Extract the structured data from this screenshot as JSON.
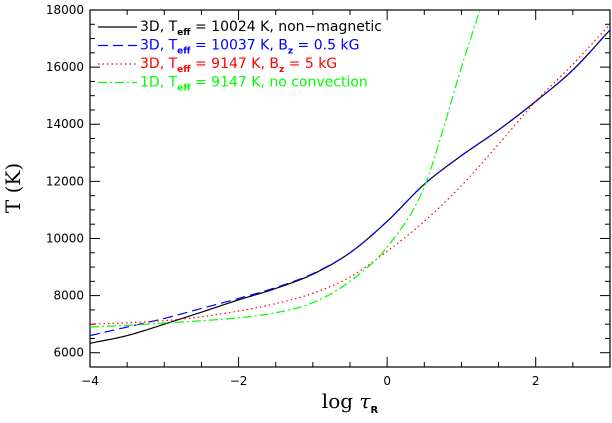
{
  "chart_data": {
    "type": "line",
    "xlabel_main": "log",
    "xlabel_greek": "τ",
    "xlabel_sub": "R",
    "ylabel_main": "T",
    "ylabel_unit": "(K)",
    "xlim": [
      -4,
      3
    ],
    "ylim": [
      5500,
      18000
    ],
    "xticks": [
      -4,
      -2,
      0,
      2
    ],
    "yticks": [
      6000,
      8000,
      10000,
      12000,
      14000,
      16000,
      18000
    ],
    "xtick_labels": [
      "−4",
      "−2",
      "0",
      "2"
    ],
    "ytick_labels": [
      "6000",
      "8000",
      "10000",
      "12000",
      "14000",
      "16000",
      "18000"
    ],
    "grid": false,
    "legend_position": "top-left",
    "series": [
      {
        "legend_pre": "3D, T",
        "legend_sub": "eff",
        "legend_post": " = 10024 K, non−magnetic",
        "color": "#000000",
        "dash": "",
        "x": [
          -4,
          -3.5,
          -3,
          -2.5,
          -2,
          -1.5,
          -1,
          -0.5,
          0,
          0.5,
          1,
          1.5,
          2,
          2.5,
          3
        ],
        "y": [
          6330,
          6600,
          7000,
          7420,
          7850,
          8250,
          8750,
          9500,
          10600,
          11900,
          12900,
          13800,
          14800,
          15900,
          17300
        ]
      },
      {
        "legend_pre": "3D, T",
        "legend_sub": "eff",
        "legend_post": " = 10037 K, B",
        "legend_sub2": "z",
        "legend_post2": " = 0.5 kG",
        "color": "#0000ff",
        "dash": "10,5",
        "x": [
          -4,
          -3.5,
          -3,
          -2.5,
          -2,
          -1.5,
          -1,
          -0.5,
          0,
          0.5,
          1,
          1.5,
          2,
          2.5,
          3
        ],
        "y": [
          6600,
          6900,
          7200,
          7550,
          7900,
          8280,
          8770,
          9500,
          10600,
          11900,
          12900,
          13800,
          14800,
          15900,
          17300
        ]
      },
      {
        "legend_pre": "3D, T",
        "legend_sub": "eff",
        "legend_post": " = 9147 K, B",
        "legend_sub2": "z",
        "legend_post2": " = 5 kG",
        "color": "#ff0000",
        "dash": "1.5,3",
        "x": [
          -4,
          -3.5,
          -3,
          -2.5,
          -2,
          -1.5,
          -1,
          -0.5,
          0,
          0.5,
          1,
          1.5,
          2,
          2.5,
          3
        ],
        "y": [
          7000,
          7050,
          7120,
          7260,
          7460,
          7720,
          8080,
          8650,
          9550,
          10600,
          11850,
          13300,
          14800,
          16100,
          17500
        ]
      },
      {
        "legend_pre": "1D, T",
        "legend_sub": "eff",
        "legend_post": " = 9147 K, no convection",
        "color": "#00ff00",
        "dash": "9,3,2,3",
        "x": [
          -4,
          -3.5,
          -3,
          -2.5,
          -2,
          -1.5,
          -1,
          -0.5,
          0,
          0.5,
          0.75,
          1,
          1.25
        ],
        "y": [
          6900,
          6960,
          7040,
          7120,
          7220,
          7400,
          7750,
          8500,
          9700,
          11800,
          13800,
          16000,
          18000
        ]
      }
    ]
  }
}
